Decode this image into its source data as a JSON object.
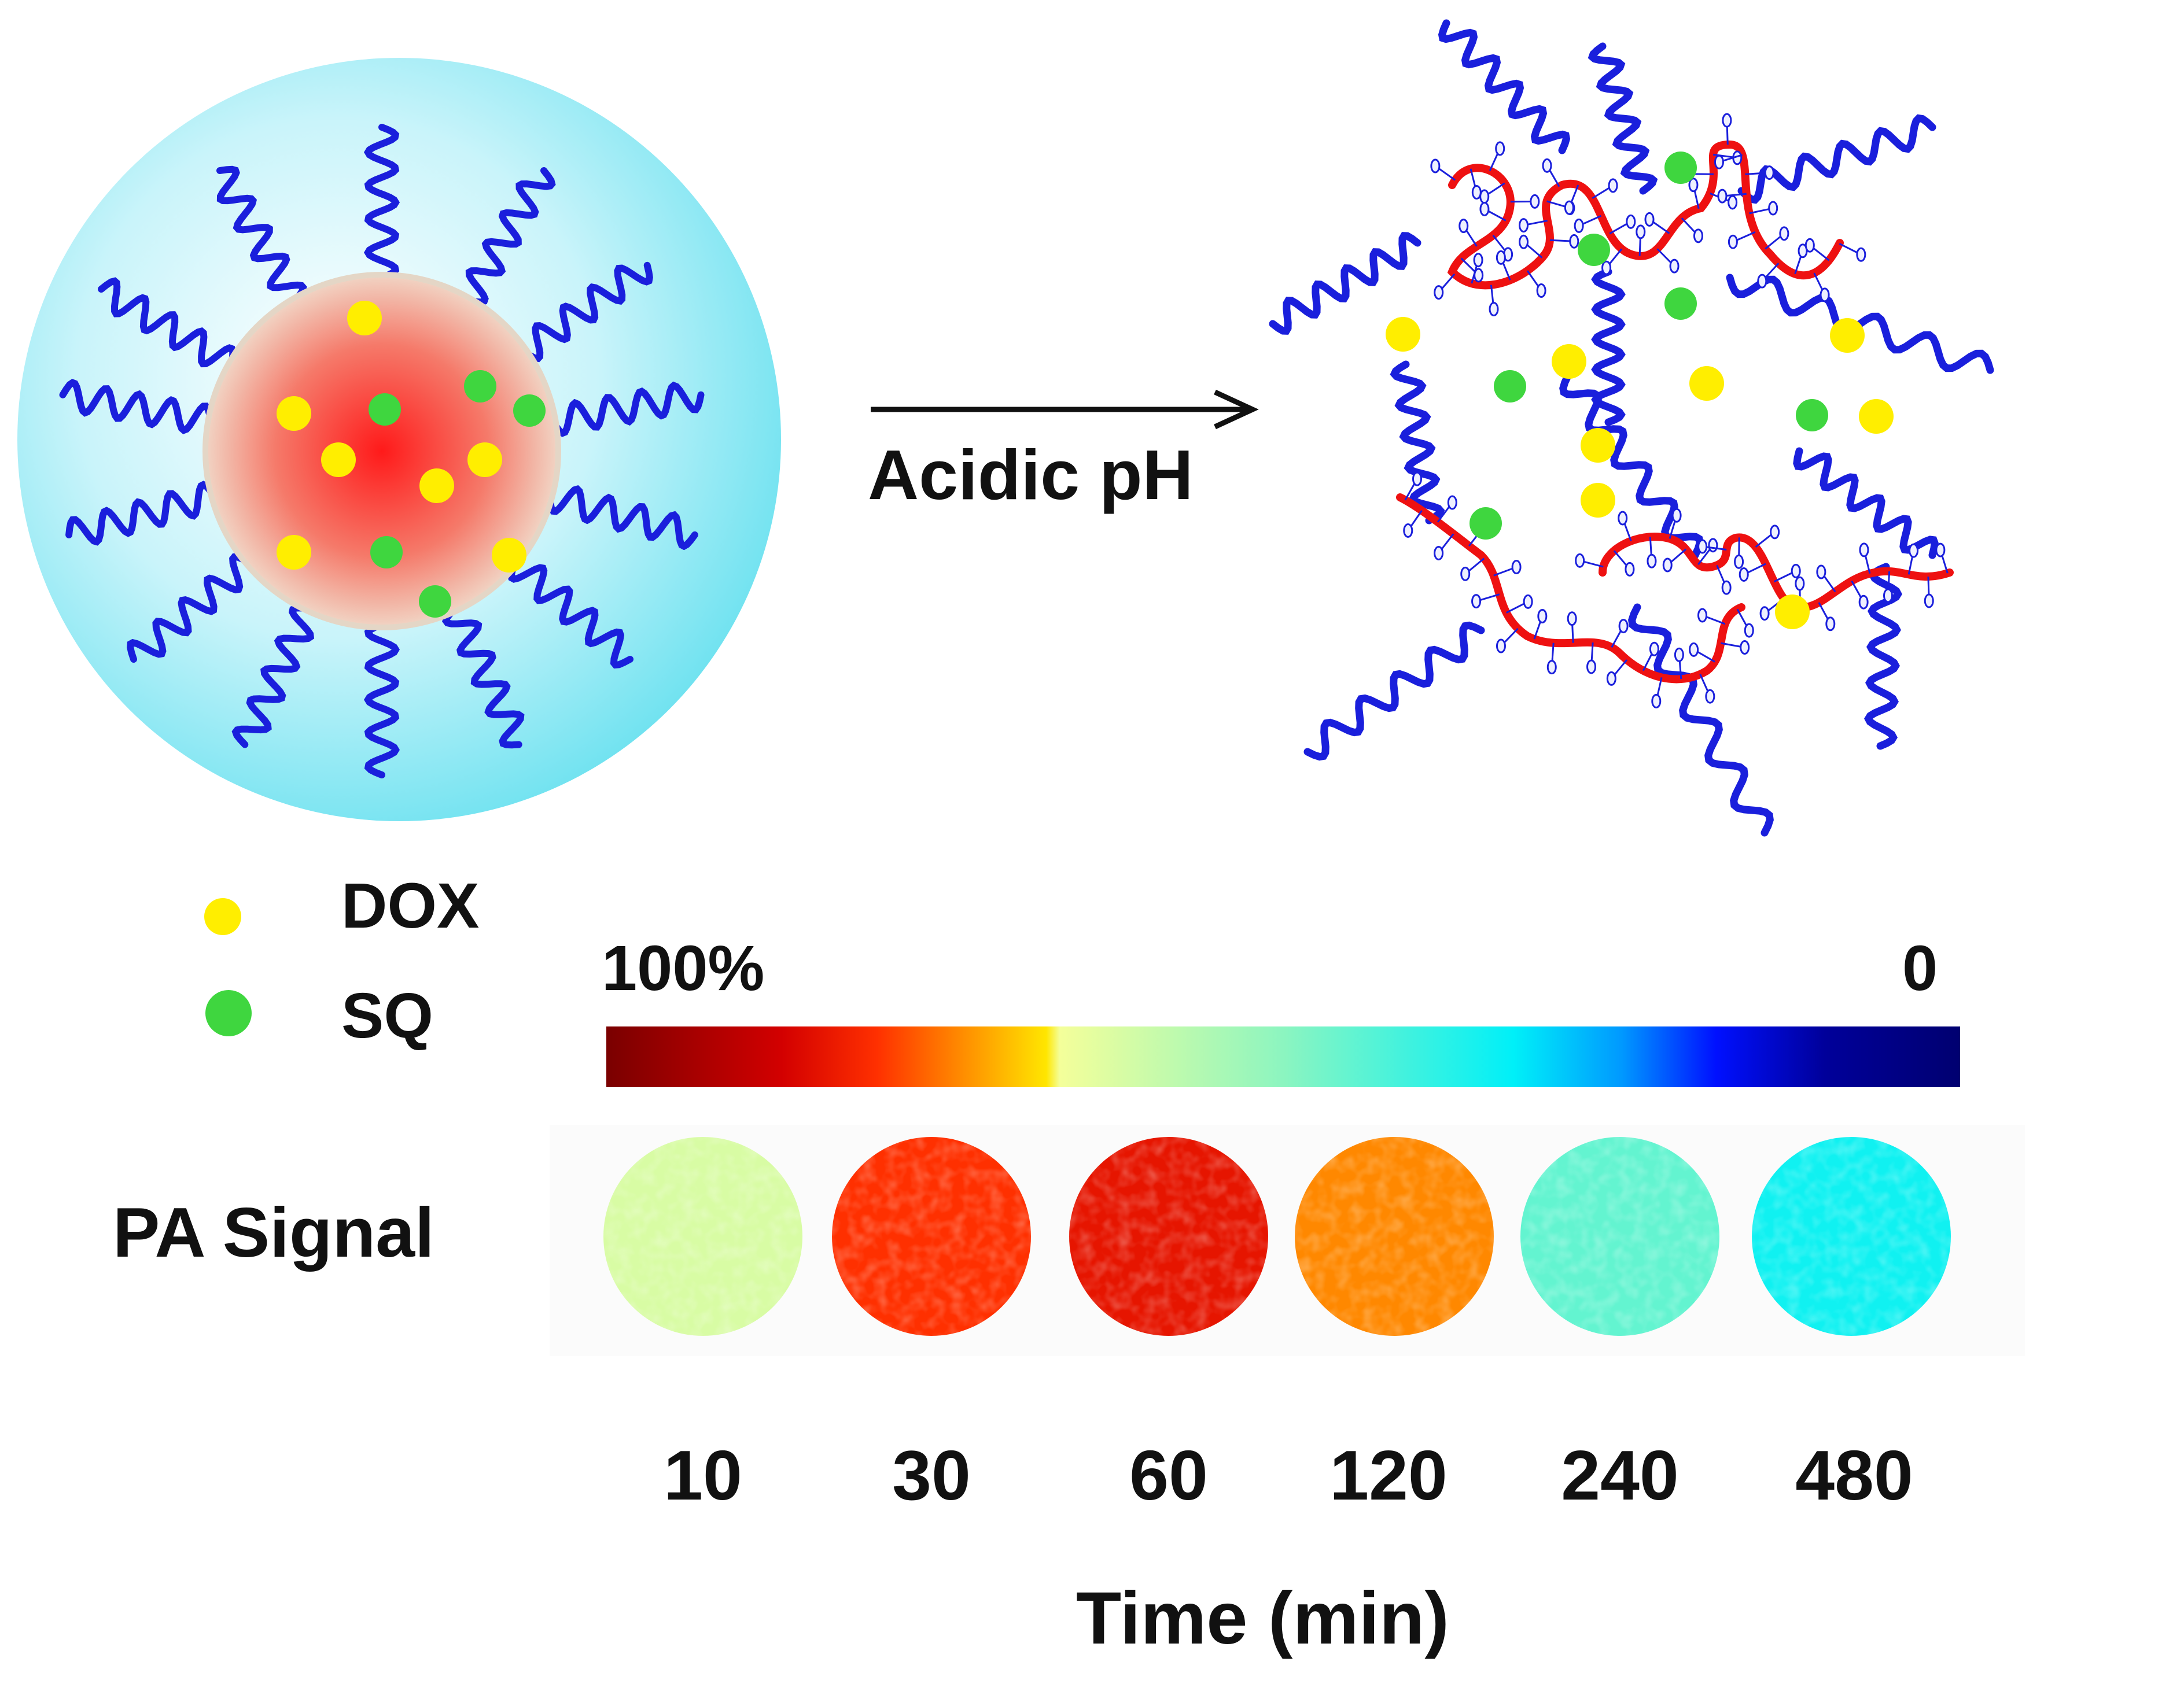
{
  "reaction": {
    "condition_label": "Acidic pH"
  },
  "legend": {
    "items": [
      {
        "label": "DOX",
        "color": "#ffee00"
      },
      {
        "label": "SQ",
        "color": "#3fd63f"
      }
    ]
  },
  "colorbar": {
    "max_label": "100%",
    "min_label": "0",
    "colors": [
      "#7a0000",
      "#e00000",
      "#ff8a00",
      "#ffee00",
      "#f4ff9a",
      "#33f0d8",
      "#00e0ff",
      "#0055ff",
      "#0000cc",
      "#000070"
    ]
  },
  "pa_panel": {
    "row_label": "PA Signal",
    "time_points": [
      "10",
      "30",
      "60",
      "120",
      "240",
      "480"
    ],
    "x_axis_label": "Time (min)",
    "relative_signal": [
      0.62,
      0.8,
      0.84,
      0.74,
      0.45,
      0.35
    ]
  },
  "colors": {
    "peg_chain": "#1a1fdc",
    "polymer_backbone": "#ee1111",
    "shell": "#c8f4fb",
    "core": "#ff2a2a"
  }
}
